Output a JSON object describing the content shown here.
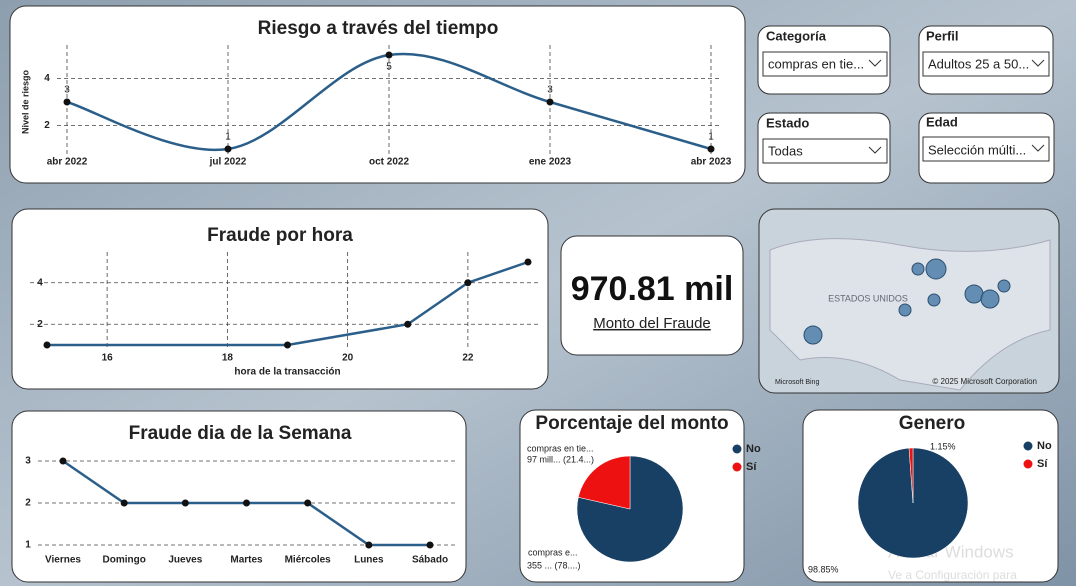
{
  "chart_data": [
    {
      "type": "line",
      "title": "Riesgo a través del tiempo",
      "y_label": "Nivel de riesgo",
      "categories": [
        "abr 2022",
        "jul 2022",
        "oct 2022",
        "ene 2023",
        "abr 2023"
      ],
      "values": [
        3,
        1,
        5,
        3,
        1
      ],
      "ylim": [
        1,
        5
      ],
      "yticks": [
        2,
        4
      ],
      "color": "#2b5f8a",
      "smooth": true,
      "data_labels": true,
      "grid": {
        "x": true,
        "y": true
      }
    },
    {
      "type": "line",
      "title": "Fraude por hora",
      "x_label": "hora de la transacción",
      "x": [
        15,
        19,
        21,
        22,
        23
      ],
      "values": [
        1,
        1,
        2,
        4,
        5
      ],
      "xlim": [
        15,
        23
      ],
      "xticks": [
        16,
        18,
        20,
        22
      ],
      "ylim": [
        1,
        5
      ],
      "yticks": [
        2,
        4
      ],
      "color": "#2b5f8a",
      "smooth": false,
      "data_labels": false,
      "grid": {
        "x": true,
        "y": true
      }
    },
    {
      "type": "line",
      "title": "Fraude dia de la Semana",
      "categories": [
        "Viernes",
        "Domingo",
        "Jueves",
        "Martes",
        "Miércoles",
        "Lunes",
        "Sábado"
      ],
      "values": [
        3,
        2,
        2,
        2,
        2,
        1,
        1
      ],
      "ylim": [
        1,
        3
      ],
      "yticks": [
        1,
        2,
        3
      ],
      "color": "#2b5f8a",
      "smooth": false,
      "data_labels": false,
      "grid": {
        "x": false,
        "y": true
      }
    },
    {
      "type": "pie",
      "title": "Porcentaje del monto",
      "categories": [
        "No",
        "Sí"
      ],
      "values": [
        355,
        97
      ],
      "value_labels": [
        "355 ... (78....)",
        "97 mill... (21.4...)"
      ],
      "slice_labels": [
        "compras e...",
        "compras en tie..."
      ],
      "colors": [
        "#183f64",
        "#ee1111"
      ]
    },
    {
      "type": "pie",
      "title": "Genero",
      "categories": [
        "No",
        "Sí"
      ],
      "values": [
        98.85,
        1.15
      ],
      "value_labels": [
        "98.85%",
        "1.15%"
      ],
      "colors": [
        "#183f64",
        "#ee1111"
      ]
    }
  ],
  "filters": [
    {
      "label": "Categoría",
      "selected": "compras en tie..."
    },
    {
      "label": "Perfil",
      "selected": "Adultos 25 a 50..."
    },
    {
      "label": "Estado",
      "selected": "Todas"
    },
    {
      "label": "Edad",
      "selected": "Selección múlti..."
    }
  ],
  "card": {
    "value": "970.81 mil",
    "label": "Monto del Fraude"
  },
  "map": {
    "region_label": "ESTADOS UNIDOS",
    "provider": "Microsoft Bing",
    "copyright": "© 2025 Microsoft Corporation"
  },
  "watermark": {
    "line1": "Activar Windows",
    "line2": "Ve a Configuración para"
  }
}
